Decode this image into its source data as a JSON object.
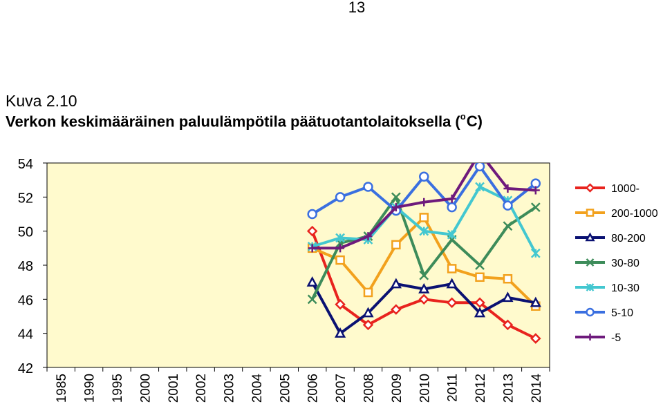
{
  "page_number": "13",
  "figure_label": "Kuva 2.10",
  "title_main": "Verkon keskimääräinen paluulämpötila päätuotantolaitoksella (",
  "title_sup": "o",
  "title_unit": "C)",
  "chart_data": {
    "type": "line",
    "title": "Verkon keskimääräinen paluulämpötila päätuotantolaitoksella (°C)",
    "categories": [
      "1985",
      "1990",
      "1995",
      "2000",
      "2001",
      "2002",
      "2003",
      "2004",
      "2005",
      "2006",
      "2007",
      "2008",
      "2009",
      "2010",
      "2011",
      "2012",
      "2013",
      "2014"
    ],
    "ylim": [
      42,
      54
    ],
    "yticks": [
      42,
      44,
      46,
      48,
      50,
      52,
      54
    ],
    "grid": false,
    "plot_background": "#FFFACD",
    "legend_position": "right",
    "series": [
      {
        "name": "1000-",
        "color": "#E8231E",
        "marker": "diamond",
        "values": [
          null,
          null,
          null,
          null,
          null,
          null,
          null,
          null,
          null,
          50.0,
          45.7,
          44.5,
          45.4,
          46.0,
          45.8,
          45.8,
          44.5,
          43.7
        ]
      },
      {
        "name": "200-1000",
        "color": "#F2A11D",
        "marker": "square",
        "values": [
          null,
          null,
          null,
          null,
          null,
          null,
          null,
          null,
          null,
          49.0,
          48.3,
          46.4,
          49.2,
          50.8,
          47.8,
          47.3,
          47.2,
          45.6
        ]
      },
      {
        "name": "80-200",
        "color": "#0A1172",
        "marker": "triangle",
        "values": [
          null,
          null,
          null,
          null,
          null,
          null,
          null,
          null,
          null,
          47.0,
          44.0,
          45.2,
          46.9,
          46.6,
          46.9,
          45.2,
          46.1,
          45.8
        ]
      },
      {
        "name": "30-80",
        "color": "#3D8C5A",
        "marker": "x",
        "values": [
          null,
          null,
          null,
          null,
          null,
          null,
          null,
          null,
          null,
          46.0,
          49.3,
          49.7,
          52.0,
          47.4,
          49.5,
          48.0,
          50.3,
          51.4
        ]
      },
      {
        "name": "10-30",
        "color": "#43C7D0",
        "marker": "asterisk",
        "values": [
          null,
          null,
          null,
          null,
          null,
          null,
          null,
          null,
          null,
          49.1,
          49.6,
          49.5,
          51.4,
          50.0,
          49.8,
          52.6,
          51.8,
          48.7
        ]
      },
      {
        "name": "5-10",
        "color": "#3A6FE0",
        "marker": "circle",
        "values": [
          null,
          null,
          null,
          null,
          null,
          null,
          null,
          null,
          null,
          51.0,
          52.0,
          52.6,
          51.2,
          53.2,
          51.4,
          53.8,
          51.5,
          52.8
        ]
      },
      {
        "name": "-5",
        "color": "#6E1A7C",
        "marker": "plus",
        "values": [
          null,
          null,
          null,
          null,
          null,
          null,
          null,
          null,
          null,
          49.0,
          49.0,
          49.7,
          51.4,
          51.7,
          51.9,
          54.6,
          52.5,
          52.4
        ]
      }
    ]
  }
}
